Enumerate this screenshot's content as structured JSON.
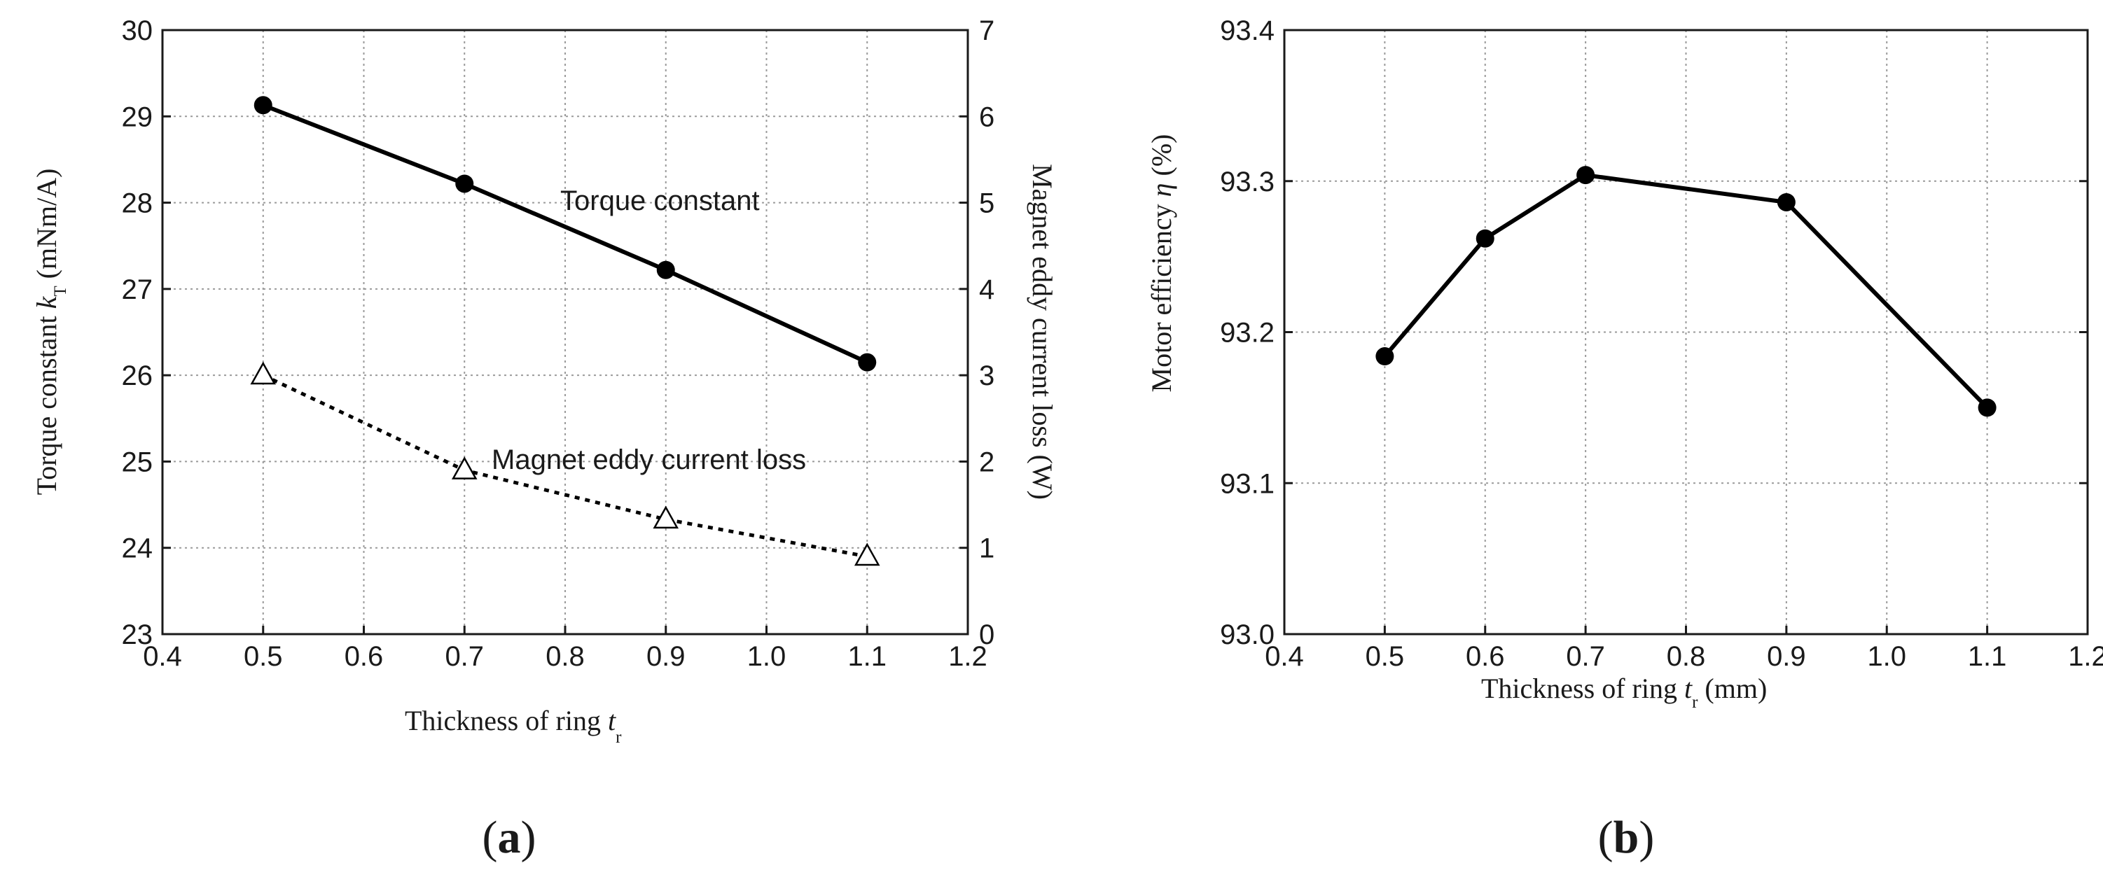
{
  "chart_data": [
    {
      "type": "line",
      "panel_label": "(a)",
      "panel_letter": "a",
      "x": [
        0.5,
        0.7,
        0.9,
        1.1
      ],
      "xlim": [
        0.4,
        1.2
      ],
      "xticks": [
        "0.4",
        "0.5",
        "0.6",
        "0.7",
        "0.8",
        "0.9",
        "1.0",
        "1.1",
        "1.2"
      ],
      "xlabel": "Thickness of ring ",
      "xlabel_var": "t",
      "xlabel_sub": "r",
      "ylabel": "Torque constant ",
      "ylabel_var": "k",
      "ylabel_sub": "T",
      "ylabel_unit": " (mNm/A)",
      "ylim": [
        23,
        30
      ],
      "yticks": [
        "23",
        "24",
        "25",
        "26",
        "27",
        "28",
        "29",
        "30"
      ],
      "y2label": "Magnet eddy current loss (W)",
      "y2lim": [
        0,
        7
      ],
      "y2ticks": [
        "0",
        "1",
        "2",
        "3",
        "4",
        "5",
        "6",
        "7"
      ],
      "grid": true,
      "series": [
        {
          "name": "Torque constant",
          "axis": "left",
          "values": [
            29.13,
            28.22,
            27.22,
            26.15
          ],
          "style": "solid",
          "marker": "filled-circle",
          "color": "#000000"
        },
        {
          "name": "Magnet eddy current loss",
          "axis": "right",
          "values": [
            3.0,
            1.9,
            1.33,
            0.9
          ],
          "style": "dotted",
          "marker": "open-triangle",
          "color": "#000000"
        }
      ]
    },
    {
      "type": "line",
      "panel_label": "(b)",
      "panel_letter": "b",
      "x": [
        0.5,
        0.6,
        0.7,
        0.9,
        1.1
      ],
      "xlim": [
        0.4,
        1.2
      ],
      "xticks": [
        "0.4",
        "0.5",
        "0.6",
        "0.7",
        "0.8",
        "0.9",
        "1.0",
        "1.1",
        "1.2"
      ],
      "xlabel": "Thickness of ring ",
      "xlabel_var": "t",
      "xlabel_sub": "r",
      "xlabel_unit": " (mm)",
      "ylabel": "Motor efficiency ",
      "ylabel_var": "η",
      "ylabel_unit": " (%)",
      "ylim": [
        93.0,
        93.4
      ],
      "yticks": [
        "93.0",
        "93.1",
        "93.2",
        "93.3",
        "93.4"
      ],
      "grid": true,
      "series": [
        {
          "name": "Motor efficiency",
          "values": [
            93.184,
            93.262,
            93.304,
            93.286,
            93.15
          ],
          "style": "solid",
          "marker": "filled-circle",
          "color": "#000000"
        }
      ]
    }
  ]
}
